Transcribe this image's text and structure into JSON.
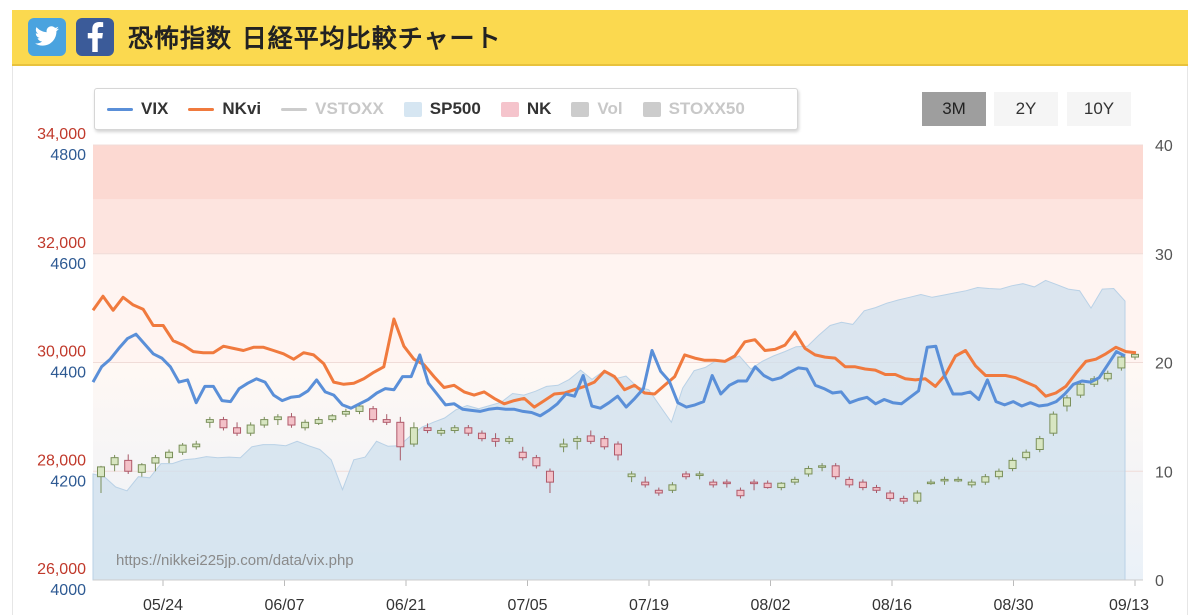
{
  "header": {
    "title": "恐怖指数 日経平均比較チャート"
  },
  "range_buttons": [
    "3M",
    "2Y",
    "10Y"
  ],
  "colors": {
    "vix": "#5a8fd8",
    "nkvi": "#f07a3e",
    "vstoxx": "#c8c8c8",
    "sp500_fill": "#d6e6f2",
    "nk_up": "#d8e6c2",
    "nk_down": "#f3c1c8",
    "nk_axis": "#c0392b",
    "sp_axis": "#2e5a93",
    "bands": "#fde1dc"
  },
  "chart_data": {
    "type": "line",
    "source_text": "https://nikkei225jp.com/data/vix.php",
    "legend": [
      {
        "name": "VIX",
        "kind": "line",
        "color": "#5a8fd8",
        "enabled": true
      },
      {
        "name": "NKvi",
        "kind": "line",
        "color": "#f07a3e",
        "enabled": true
      },
      {
        "name": "VSTOXX",
        "kind": "line",
        "color": "#cccccc",
        "enabled": false
      },
      {
        "name": "SP500",
        "kind": "area",
        "color": "#d6e6f2",
        "enabled": true
      },
      {
        "name": "NK",
        "kind": "box",
        "color": "#f5c4cc",
        "enabled": true
      },
      {
        "name": "Vol",
        "kind": "box",
        "color": "#cccccc",
        "enabled": false
      },
      {
        "name": "STOXX50",
        "kind": "box",
        "color": "#cccccc",
        "enabled": false
      }
    ],
    "x_ticks": [
      "05/24",
      "06/07",
      "06/21",
      "07/05",
      "07/19",
      "08/02",
      "08/16",
      "08/30",
      "09/13"
    ],
    "y_left_nk": {
      "ticks": [
        "26,000",
        "28,000",
        "30,000",
        "32,000",
        "34,000"
      ],
      "range": [
        26000,
        34000
      ]
    },
    "y_left_sp": {
      "ticks": [
        "4000",
        "4200",
        "4400",
        "4600",
        "4800"
      ],
      "range": [
        4000,
        4800
      ]
    },
    "y_right": {
      "ticks": [
        "0",
        "10",
        "20",
        "30",
        "40"
      ],
      "range": [
        0,
        40
      ]
    },
    "vix": [
      18.2,
      19.6,
      20.3,
      21.3,
      22.2,
      22.6,
      21.7,
      20.8,
      20.4,
      19.6,
      18.2,
      18.4,
      16.3,
      17.8,
      17.8,
      16.5,
      16.4,
      17.6,
      18.1,
      18.5,
      18.2,
      17.0,
      16.5,
      16.8,
      16.9,
      17.4,
      18.4,
      17.3,
      17.0,
      16.1,
      15.8,
      16.2,
      16.6,
      17.2,
      17.6,
      17.5,
      18.7,
      18.7,
      20.7,
      18.1,
      17.1,
      16.1,
      16.2,
      15.7,
      15.6,
      15.5,
      15.7,
      15.8,
      15.7,
      15.7,
      15.5,
      15.4,
      15.1,
      15.6,
      16.2,
      17.1,
      16.9,
      18.8,
      16.0,
      15.8,
      16.3,
      16.9,
      15.9,
      16.7,
      17.6,
      21.1,
      19.2,
      18.3,
      16.3,
      15.9,
      16.1,
      16.4,
      18.8,
      17.1,
      17.9,
      18.3,
      18.3,
      19.6,
      18.8,
      18.4,
      18.6,
      19.1,
      19.5,
      19.4,
      17.9,
      17.6,
      17.2,
      17.3,
      16.3,
      16.6,
      16.8,
      16.2,
      16.6,
      16.3,
      16.2,
      16.8,
      17.4,
      21.4,
      21.5,
      18.8,
      17.1,
      17.1,
      17.3,
      16.6,
      18.4,
      16.4,
      16.1,
      16.4,
      16.0,
      16.3,
      16.0,
      16.1,
      16.4,
      17.1,
      18.0,
      18.3,
      18.2,
      18.6,
      19.8,
      21.0,
      20.6
    ],
    "nkvi": [
      24.8,
      26.1,
      24.8,
      26.0,
      25.3,
      24.9,
      23.4,
      23.4,
      22.0,
      21.6,
      21.0,
      20.9,
      20.9,
      21.5,
      21.3,
      21.1,
      21.4,
      21.4,
      21.1,
      20.8,
      20.3,
      20.9,
      20.7,
      19.9,
      18.2,
      18.0,
      18.1,
      18.5,
      19.1,
      19.6,
      24.0,
      21.5,
      20.3,
      19.8,
      18.7,
      17.7,
      17.9,
      17.3,
      17.0,
      17.3,
      16.7,
      16.2,
      16.5,
      16.7,
      15.9,
      16.5,
      17.1,
      17.2,
      17.5,
      17.8,
      18.2,
      19.2,
      18.7,
      17.5,
      17.9,
      17.2,
      17.1,
      17.9,
      18.7,
      20.7,
      20.4,
      20.2,
      20.2,
      20.1,
      20.6,
      21.9,
      22.1,
      21.1,
      21.2,
      21.6,
      22.8,
      21.3,
      20.7,
      20.5,
      20.4,
      19.6,
      19.6,
      19.4,
      19.3,
      18.9,
      18.9,
      18.5,
      18.4,
      18.5,
      17.8,
      18.9,
      20.6,
      21.1,
      19.7,
      18.8,
      18.8,
      18.8,
      18.6,
      18.2,
      17.8,
      16.9,
      17.2,
      17.8,
      19.0,
      20.1,
      20.3,
      20.8,
      21.4,
      21.0,
      20.9
    ],
    "sp500": [
      4195,
      4190,
      4171,
      4164,
      4190,
      4188,
      4214,
      4214,
      4221,
      4223,
      4227,
      4225,
      4226,
      4225,
      4245,
      4249,
      4249,
      4247,
      4255,
      4247,
      4240,
      4221,
      4166,
      4221,
      4226,
      4255,
      4246,
      4247,
      4265,
      4281,
      4290,
      4298,
      4313,
      4321,
      4315,
      4321,
      4327,
      4343,
      4340,
      4347,
      4356,
      4358,
      4369,
      4386,
      4369,
      4384,
      4370,
      4375,
      4355,
      4350,
      4320,
      4290,
      4353,
      4385,
      4391,
      4404,
      4403,
      4412,
      4388,
      4402,
      4412,
      4420,
      4429,
      4430,
      4450,
      4468,
      4474,
      4470,
      4495,
      4501,
      4509,
      4515,
      4520,
      4525,
      4520,
      4524,
      4528,
      4532,
      4538,
      4536,
      4535,
      4541,
      4545,
      4539,
      4551,
      4543,
      4535,
      4532,
      4500,
      4535,
      4536,
      4513
    ],
    "nk_candles": [
      [
        27900,
        28100,
        27600,
        28080
      ],
      [
        28120,
        28300,
        28000,
        28250
      ],
      [
        28200,
        28310,
        27950,
        28000
      ],
      [
        27980,
        28150,
        27900,
        28120
      ],
      [
        28150,
        28300,
        28000,
        28250
      ],
      [
        28250,
        28400,
        28150,
        28350
      ],
      [
        28350,
        28520,
        28300,
        28480
      ],
      [
        28450,
        28560,
        28400,
        28500
      ],
      [
        28900,
        29000,
        28800,
        28950
      ],
      [
        28950,
        29000,
        28750,
        28800
      ],
      [
        28800,
        28900,
        28650,
        28700
      ],
      [
        28700,
        28900,
        28650,
        28850
      ],
      [
        28850,
        29000,
        28800,
        28950
      ],
      [
        28950,
        29050,
        28850,
        29000
      ],
      [
        29000,
        29070,
        28800,
        28850
      ],
      [
        28800,
        28950,
        28750,
        28900
      ],
      [
        28880,
        29000,
        28850,
        28950
      ],
      [
        28950,
        29050,
        28900,
        29020
      ],
      [
        29050,
        29150,
        29000,
        29100
      ],
      [
        29100,
        29250,
        29050,
        29200
      ],
      [
        29150,
        29200,
        28900,
        28950
      ],
      [
        28950,
        29050,
        28850,
        28900
      ],
      [
        28900,
        29000,
        28200,
        28450
      ],
      [
        28500,
        28900,
        28450,
        28800
      ],
      [
        28800,
        28880,
        28700,
        28750
      ],
      [
        28700,
        28800,
        28650,
        28750
      ],
      [
        28750,
        28850,
        28700,
        28800
      ],
      [
        28800,
        28850,
        28650,
        28700
      ],
      [
        28700,
        28750,
        28550,
        28600
      ],
      [
        28600,
        28700,
        28450,
        28550
      ],
      [
        28550,
        28650,
        28500,
        28600
      ],
      [
        28350,
        28450,
        28200,
        28250
      ],
      [
        28250,
        28300,
        28050,
        28100
      ],
      [
        28000,
        28050,
        27600,
        27800
      ],
      [
        28450,
        28600,
        28350,
        28500
      ],
      [
        28550,
        28650,
        28400,
        28600
      ],
      [
        28650,
        28750,
        28500,
        28550
      ],
      [
        28600,
        28650,
        28400,
        28450
      ],
      [
        28500,
        28550,
        28200,
        28300
      ],
      [
        27900,
        28000,
        27800,
        27950
      ],
      [
        27800,
        27900,
        27700,
        27750
      ],
      [
        27650,
        27700,
        27550,
        27600
      ],
      [
        27650,
        27800,
        27600,
        27750
      ],
      [
        27950,
        28000,
        27850,
        27900
      ],
      [
        27950,
        28000,
        27850,
        27950
      ],
      [
        27800,
        27850,
        27700,
        27750
      ],
      [
        27800,
        27850,
        27700,
        27780
      ],
      [
        27650,
        27700,
        27500,
        27550
      ],
      [
        27800,
        27850,
        27650,
        27780
      ],
      [
        27780,
        27830,
        27680,
        27700
      ],
      [
        27700,
        27800,
        27650,
        27780
      ],
      [
        27800,
        27900,
        27750,
        27850
      ],
      [
        27950,
        28100,
        27900,
        28050
      ],
      [
        28100,
        28150,
        28000,
        28100
      ],
      [
        28100,
        28150,
        27850,
        27900
      ],
      [
        27850,
        27900,
        27700,
        27750
      ],
      [
        27800,
        27850,
        27650,
        27700
      ],
      [
        27700,
        27750,
        27600,
        27650
      ],
      [
        27600,
        27650,
        27450,
        27500
      ],
      [
        27500,
        27550,
        27400,
        27450
      ],
      [
        27450,
        27650,
        27400,
        27600
      ],
      [
        27800,
        27850,
        27750,
        27800
      ],
      [
        27850,
        27900,
        27750,
        27850
      ],
      [
        27850,
        27900,
        27800,
        27850
      ],
      [
        27750,
        27850,
        27700,
        27800
      ],
      [
        27800,
        27950,
        27750,
        27900
      ],
      [
        27900,
        28050,
        27850,
        28000
      ],
      [
        28050,
        28250,
        28000,
        28200
      ],
      [
        28250,
        28400,
        28200,
        28350
      ],
      [
        28400,
        28650,
        28350,
        28600
      ],
      [
        28700,
        29100,
        28650,
        29050
      ],
      [
        29200,
        29400,
        29100,
        29350
      ],
      [
        29400,
        29650,
        29350,
        29600
      ],
      [
        29600,
        29750,
        29550,
        29700
      ],
      [
        29700,
        29850,
        29650,
        29800
      ],
      [
        29900,
        30150,
        29850,
        30100
      ],
      [
        30100,
        30200,
        30050,
        30150
      ]
    ]
  }
}
